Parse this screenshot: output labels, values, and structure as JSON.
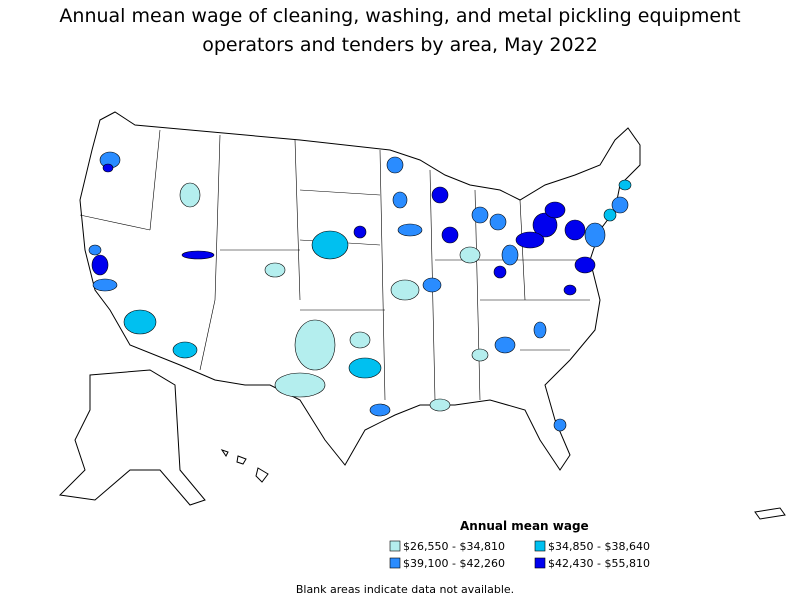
{
  "title": [
    "Annual mean wage of cleaning, washing, and metal pickling equipment",
    "operators and tenders by area, May 2022"
  ],
  "legend": {
    "title": "Annual mean wage",
    "items": [
      {
        "label": "$26,550 - $34,810",
        "color": "#b4eeee"
      },
      {
        "label": "$34,850 - $38,640",
        "color": "#00c0f0"
      },
      {
        "label": "$39,100 - $42,260",
        "color": "#2a8cff"
      },
      {
        "label": "$42,430 - $55,810",
        "color": "#0000ee"
      }
    ]
  },
  "note": "Blank areas indicate data not available."
}
